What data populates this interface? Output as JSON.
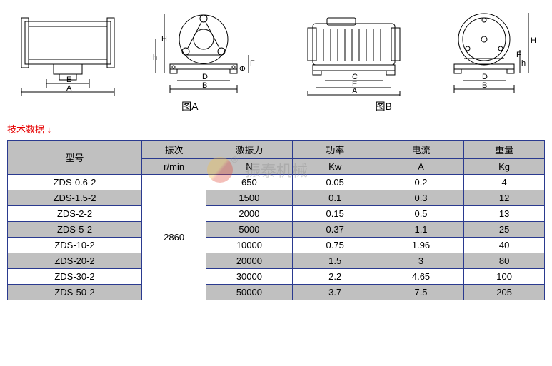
{
  "diagrams": {
    "captionA": "图A",
    "captionB": "图B",
    "dimLabels": {
      "A": "A",
      "B": "B",
      "C": "C",
      "D": "D",
      "E": "E",
      "F": "F",
      "H": "H",
      "h": "h",
      "phi": "Φ"
    }
  },
  "techLabel": "技术数据 ↓",
  "table": {
    "headers": {
      "model": "型号",
      "vibration": "振次",
      "vibUnit": "r/min",
      "force": "激振力",
      "forceUnit": "N",
      "power": "功率",
      "powerUnit": "Kw",
      "current": "电流",
      "currentUnit": "A",
      "weight": "重量",
      "weightUnit": "Kg"
    },
    "vibValue": "2860",
    "rows": [
      {
        "model": "ZDS-0.6-2",
        "force": "650",
        "power": "0.05",
        "current": "0.2",
        "weight": "4"
      },
      {
        "model": "ZDS-1.5-2",
        "force": "1500",
        "power": "0.1",
        "current": "0.3",
        "weight": "12"
      },
      {
        "model": "ZDS-2-2",
        "force": "2000",
        "power": "0.15",
        "current": "0.5",
        "weight": "13"
      },
      {
        "model": "ZDS-5-2",
        "force": "5000",
        "power": "0.37",
        "current": "1.1",
        "weight": "25"
      },
      {
        "model": "ZDS-10-2",
        "force": "10000",
        "power": "0.75",
        "current": "1.96",
        "weight": "40"
      },
      {
        "model": "ZDS-20-2",
        "force": "20000",
        "power": "1.5",
        "current": "3",
        "weight": "80"
      },
      {
        "model": "ZDS-30-2",
        "force": "30000",
        "power": "2.2",
        "current": "4.65",
        "weight": "100"
      },
      {
        "model": "ZDS-50-2",
        "force": "50000",
        "power": "3.7",
        "current": "7.5",
        "weight": "205"
      }
    ],
    "styles": {
      "borderColor": "#2a3a8f",
      "headerBg": "#c0c0c0",
      "altRowBg": "#c0c0c0",
      "fontSize": 13
    }
  },
  "watermarkText": "振泰机械"
}
